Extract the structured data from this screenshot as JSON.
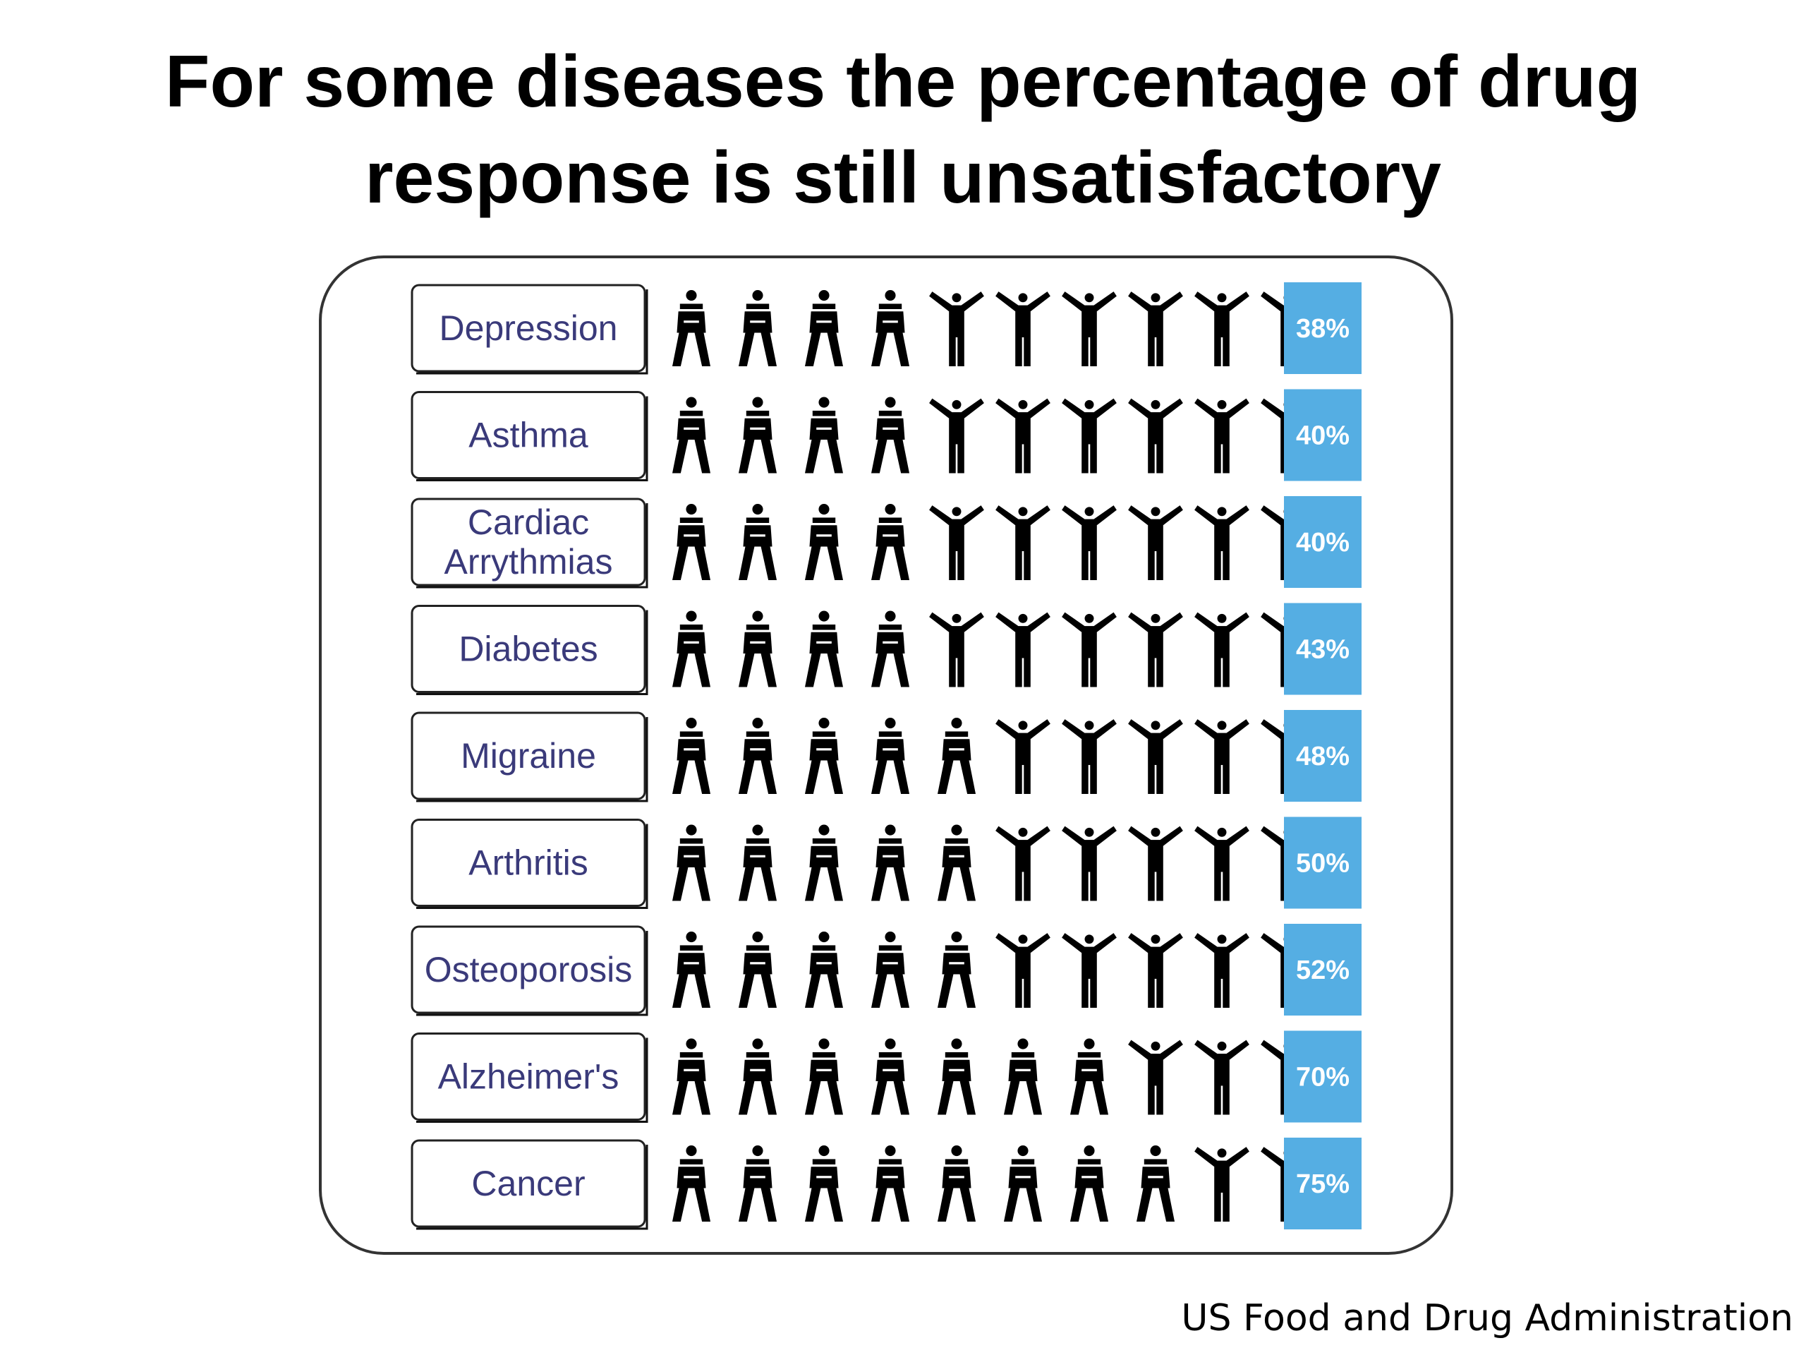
{
  "title_lines": [
    "For some diseases the percentage of drug",
    "response is still unsatisfactory"
  ],
  "source": "US Food and Drug Administration",
  "colors": {
    "badge": "#55aee3",
    "badge_text": "#ffffff",
    "figure": "#000000",
    "label_text": "#3a3a7a"
  },
  "chart_data": {
    "type": "bar",
    "title": "For some diseases the percentage of drug response is still unsatisfactory",
    "unit": "%",
    "icons_per_row": 10,
    "icon_meaning": {
      "down-figure-icon": "non-responder",
      "raised-arms-figure-icon": "responder"
    },
    "categories": [
      {
        "label_lines": [
          "Depression"
        ],
        "value": "38%",
        "non_responders": 4
      },
      {
        "label_lines": [
          "Asthma"
        ],
        "value": "40%",
        "non_responders": 4
      },
      {
        "label_lines": [
          "Cardiac",
          "Arrythmias"
        ],
        "value": "40%",
        "non_responders": 4
      },
      {
        "label_lines": [
          "Diabetes"
        ],
        "value": "43%",
        "non_responders": 4
      },
      {
        "label_lines": [
          "Migraine"
        ],
        "value": "48%",
        "non_responders": 5
      },
      {
        "label_lines": [
          "Arthritis"
        ],
        "value": "50%",
        "non_responders": 5
      },
      {
        "label_lines": [
          "Osteoporosis"
        ],
        "value": "52%",
        "non_responders": 5
      },
      {
        "label_lines": [
          "Alzheimer's"
        ],
        "value": "70%",
        "non_responders": 7
      },
      {
        "label_lines": [
          "Cancer"
        ],
        "value": "75%",
        "non_responders": 8
      }
    ]
  }
}
